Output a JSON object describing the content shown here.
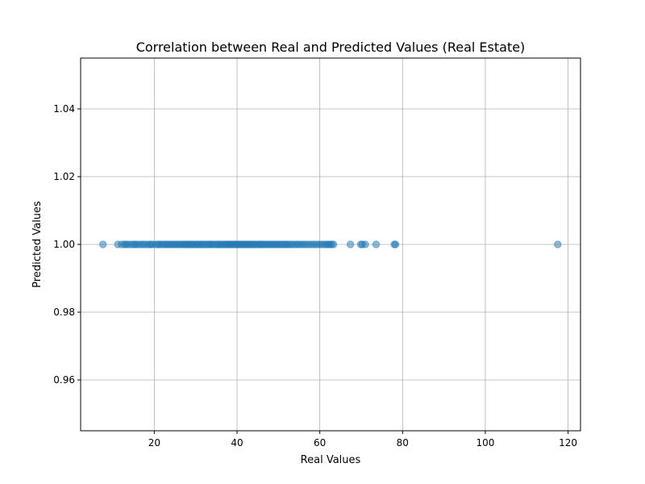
{
  "chart_data": {
    "type": "scatter",
    "title": "Correlation between Real and Predicted Values (Real Estate)",
    "xlabel": "Real Values",
    "ylabel": "Predicted Values",
    "xlim": [
      2.2,
      123.0
    ],
    "ylim": [
      0.945,
      1.055
    ],
    "x_ticks": [
      20,
      40,
      60,
      80,
      100,
      120
    ],
    "y_ticks": [
      0.96,
      0.98,
      1.0,
      1.02,
      1.04
    ],
    "x_tick_labels": [
      "20",
      "40",
      "60",
      "80",
      "100",
      "120"
    ],
    "y_tick_labels": [
      "0.96",
      "0.98",
      "1.00",
      "1.02",
      "1.04"
    ],
    "grid": true,
    "marker_color": "#1f77b4",
    "series": [
      {
        "x": [
          7.6,
          11.2,
          12.1,
          12.8,
          13.2,
          13.7,
          14.4,
          15.0,
          15.4,
          15.9,
          16.5,
          17.1,
          17.6,
          18.2,
          18.8,
          19.2,
          19.6,
          20.4,
          20.9,
          21.3,
          21.8,
          22.3,
          22.8,
          23.2,
          23.7,
          24.1,
          24.6,
          25.0,
          25.5,
          25.9,
          26.4,
          26.8,
          27.3,
          27.7,
          28.1,
          28.5,
          28.9,
          29.3,
          29.8,
          30.2,
          30.6,
          31.1,
          31.5,
          31.9,
          32.4,
          32.9,
          33.3,
          33.7,
          34.1,
          34.6,
          35.1,
          35.5,
          35.9,
          36.3,
          36.8,
          37.2,
          37.6,
          38.0,
          38.4,
          38.8,
          39.2,
          39.6,
          40.0,
          40.4,
          40.8,
          41.2,
          41.6,
          42.0,
          42.4,
          42.8,
          43.2,
          43.6,
          44.0,
          44.4,
          44.9,
          45.3,
          45.7,
          46.1,
          46.6,
          47.0,
          47.5,
          47.9,
          48.4,
          48.8,
          49.3,
          49.7,
          50.2,
          50.6,
          51.1,
          51.6,
          52.0,
          52.5,
          53.0,
          53.5,
          54.1,
          54.6,
          55.1,
          55.7,
          56.2,
          56.8,
          57.4,
          58.0,
          58.6,
          59.2,
          59.8,
          60.4,
          61.0,
          61.5,
          62.0,
          62.4,
          62.9,
          63.3,
          67.4,
          69.9,
          70.3,
          71.0,
          73.6,
          78.0,
          78.3,
          117.5
        ],
        "y": [
          1.0,
          1.0,
          1.0,
          1.0,
          1.0,
          1.0,
          1.0,
          1.0,
          1.0,
          1.0,
          1.0,
          1.0,
          1.0,
          1.0,
          1.0,
          1.0,
          1.0,
          1.0,
          1.0,
          1.0,
          1.0,
          1.0,
          1.0,
          1.0,
          1.0,
          1.0,
          1.0,
          1.0,
          1.0,
          1.0,
          1.0,
          1.0,
          1.0,
          1.0,
          1.0,
          1.0,
          1.0,
          1.0,
          1.0,
          1.0,
          1.0,
          1.0,
          1.0,
          1.0,
          1.0,
          1.0,
          1.0,
          1.0,
          1.0,
          1.0,
          1.0,
          1.0,
          1.0,
          1.0,
          1.0,
          1.0,
          1.0,
          1.0,
          1.0,
          1.0,
          1.0,
          1.0,
          1.0,
          1.0,
          1.0,
          1.0,
          1.0,
          1.0,
          1.0,
          1.0,
          1.0,
          1.0,
          1.0,
          1.0,
          1.0,
          1.0,
          1.0,
          1.0,
          1.0,
          1.0,
          1.0,
          1.0,
          1.0,
          1.0,
          1.0,
          1.0,
          1.0,
          1.0,
          1.0,
          1.0,
          1.0,
          1.0,
          1.0,
          1.0,
          1.0,
          1.0,
          1.0,
          1.0,
          1.0,
          1.0,
          1.0,
          1.0,
          1.0,
          1.0,
          1.0,
          1.0,
          1.0,
          1.0,
          1.0,
          1.0,
          1.0,
          1.0,
          1.0,
          1.0,
          1.0,
          1.0,
          1.0,
          1.0,
          1.0,
          1.0
        ]
      }
    ]
  }
}
